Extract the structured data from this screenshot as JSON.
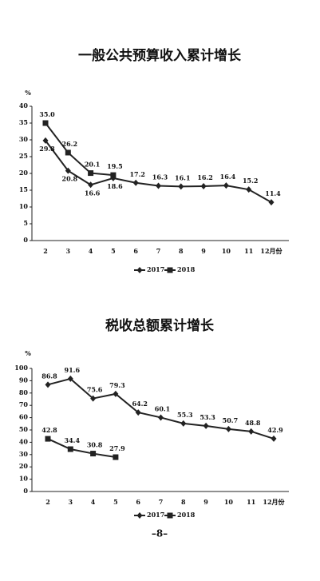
{
  "chart_data": [
    {
      "type": "line",
      "title": "一般公共预算收入累计增长",
      "y_unit": "%",
      "categories": [
        "2",
        "3",
        "4",
        "5",
        "6",
        "7",
        "8",
        "9",
        "10",
        "11",
        "12月份"
      ],
      "series": [
        {
          "name": "2017",
          "color": "#222222",
          "marker": "diamond",
          "values": [
            29.8,
            20.8,
            16.6,
            18.6,
            17.2,
            16.3,
            16.1,
            16.2,
            16.4,
            15.2,
            11.4
          ]
        },
        {
          "name": "2018",
          "color": "#222222",
          "marker": "square",
          "values": [
            35.0,
            26.2,
            20.1,
            19.5,
            null,
            null,
            null,
            null,
            null,
            null,
            null
          ],
          "value_labels": [
            "35.0",
            "26.2",
            "20.1",
            "19.5",
            null,
            null,
            null,
            null,
            null,
            null,
            null
          ]
        }
      ],
      "ylim": [
        0,
        40
      ],
      "yticks": [
        0,
        5,
        10,
        15,
        20,
        25,
        30,
        35,
        40
      ],
      "grid": false,
      "legend": "bottom"
    },
    {
      "type": "line",
      "title": "税收总额累计增长",
      "y_unit": "%",
      "categories": [
        "2",
        "3",
        "4",
        "5",
        "6",
        "7",
        "8",
        "9",
        "10",
        "11",
        "12月份"
      ],
      "series": [
        {
          "name": "2017",
          "color": "#222222",
          "marker": "diamond",
          "values": [
            86.8,
            91.6,
            75.6,
            79.3,
            64.2,
            60.1,
            55.3,
            53.3,
            50.7,
            48.8,
            42.9
          ]
        },
        {
          "name": "2018",
          "color": "#222222",
          "marker": "square",
          "values": [
            42.8,
            34.4,
            30.8,
            27.9,
            null,
            null,
            null,
            null,
            null,
            null,
            null
          ]
        }
      ],
      "ylim": [
        0,
        100
      ],
      "yticks": [
        0,
        10,
        20,
        30,
        40,
        50,
        60,
        70,
        80,
        90,
        100
      ],
      "grid": false,
      "legend": "bottom"
    }
  ],
  "page_number": "–8–"
}
